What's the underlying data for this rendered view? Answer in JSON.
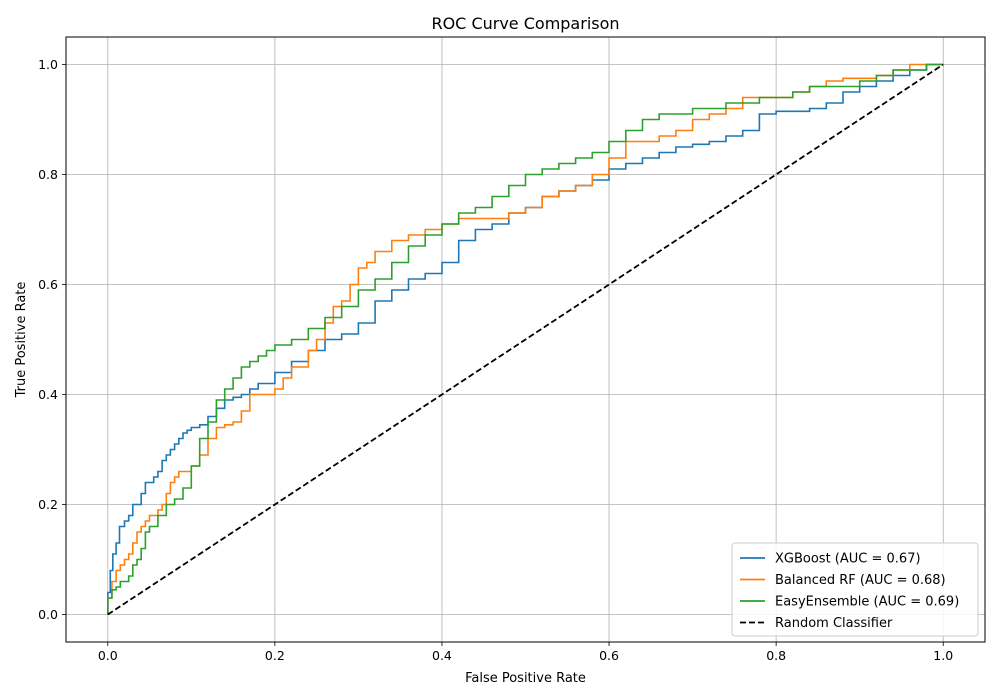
{
  "chart_data": {
    "type": "line",
    "title": "ROC Curve Comparison",
    "xlabel": "False Positive Rate",
    "ylabel": "True Positive Rate",
    "xlim": [
      -0.05,
      1.05
    ],
    "ylim": [
      -0.05,
      1.05
    ],
    "xticks": [
      "0.0",
      "0.2",
      "0.4",
      "0.6",
      "0.8",
      "1.0"
    ],
    "yticks": [
      "0.0",
      "0.2",
      "0.4",
      "0.6",
      "0.8",
      "1.0"
    ],
    "grid": true,
    "legend_position": "bottom-right",
    "series": [
      {
        "name": "XGBoost (AUC = 0.67)",
        "color": "#1f77b4",
        "x": [
          0,
          0.003,
          0.006,
          0.01,
          0.014,
          0.02,
          0.025,
          0.03,
          0.035,
          0.04,
          0.045,
          0.05,
          0.055,
          0.06,
          0.065,
          0.07,
          0.075,
          0.08,
          0.085,
          0.09,
          0.095,
          0.1,
          0.11,
          0.12,
          0.13,
          0.14,
          0.15,
          0.16,
          0.17,
          0.18,
          0.2,
          0.22,
          0.24,
          0.26,
          0.28,
          0.3,
          0.32,
          0.34,
          0.36,
          0.38,
          0.4,
          0.42,
          0.44,
          0.46,
          0.48,
          0.5,
          0.52,
          0.54,
          0.56,
          0.58,
          0.6,
          0.62,
          0.64,
          0.66,
          0.68,
          0.7,
          0.72,
          0.74,
          0.76,
          0.78,
          0.8,
          0.82,
          0.84,
          0.86,
          0.88,
          0.9,
          0.92,
          0.94,
          0.96,
          0.98,
          1.0
        ],
        "y": [
          0,
          0.04,
          0.08,
          0.11,
          0.13,
          0.16,
          0.17,
          0.18,
          0.2,
          0.2,
          0.22,
          0.24,
          0.24,
          0.25,
          0.26,
          0.28,
          0.29,
          0.3,
          0.31,
          0.32,
          0.33,
          0.335,
          0.34,
          0.345,
          0.36,
          0.375,
          0.39,
          0.395,
          0.4,
          0.41,
          0.42,
          0.44,
          0.46,
          0.48,
          0.5,
          0.51,
          0.53,
          0.57,
          0.59,
          0.61,
          0.62,
          0.64,
          0.68,
          0.7,
          0.71,
          0.73,
          0.74,
          0.76,
          0.77,
          0.78,
          0.79,
          0.81,
          0.82,
          0.83,
          0.84,
          0.85,
          0.855,
          0.86,
          0.87,
          0.88,
          0.91,
          0.915,
          0.915,
          0.92,
          0.93,
          0.95,
          0.96,
          0.97,
          0.98,
          0.99,
          1.0
        ]
      },
      {
        "name": "Balanced RF (AUC = 0.68)",
        "color": "#ff7f0e",
        "x": [
          0,
          0.005,
          0.01,
          0.015,
          0.02,
          0.025,
          0.03,
          0.035,
          0.04,
          0.045,
          0.05,
          0.055,
          0.06,
          0.065,
          0.07,
          0.075,
          0.08,
          0.085,
          0.09,
          0.1,
          0.11,
          0.12,
          0.13,
          0.14,
          0.15,
          0.16,
          0.17,
          0.18,
          0.2,
          0.21,
          0.22,
          0.24,
          0.25,
          0.26,
          0.27,
          0.28,
          0.29,
          0.3,
          0.31,
          0.32,
          0.34,
          0.36,
          0.38,
          0.4,
          0.42,
          0.44,
          0.46,
          0.48,
          0.5,
          0.52,
          0.54,
          0.56,
          0.58,
          0.6,
          0.62,
          0.64,
          0.66,
          0.68,
          0.7,
          0.72,
          0.74,
          0.76,
          0.78,
          0.8,
          0.82,
          0.84,
          0.86,
          0.88,
          0.9,
          0.92,
          0.94,
          0.96,
          0.98,
          1.0
        ],
        "y": [
          0,
          0.03,
          0.06,
          0.08,
          0.09,
          0.1,
          0.11,
          0.13,
          0.15,
          0.16,
          0.17,
          0.18,
          0.18,
          0.19,
          0.2,
          0.22,
          0.24,
          0.25,
          0.26,
          0.26,
          0.27,
          0.29,
          0.32,
          0.34,
          0.345,
          0.35,
          0.37,
          0.4,
          0.4,
          0.41,
          0.43,
          0.45,
          0.48,
          0.5,
          0.53,
          0.56,
          0.57,
          0.6,
          0.63,
          0.64,
          0.66,
          0.68,
          0.69,
          0.7,
          0.71,
          0.72,
          0.72,
          0.72,
          0.73,
          0.74,
          0.76,
          0.77,
          0.78,
          0.8,
          0.83,
          0.86,
          0.86,
          0.87,
          0.88,
          0.9,
          0.91,
          0.92,
          0.94,
          0.94,
          0.94,
          0.95,
          0.96,
          0.97,
          0.975,
          0.975,
          0.98,
          0.99,
          1.0,
          1.0
        ]
      },
      {
        "name": "EasyEnsemble (AUC = 0.69)",
        "color": "#2ca02c",
        "x": [
          0,
          0.005,
          0.01,
          0.015,
          0.02,
          0.025,
          0.03,
          0.035,
          0.04,
          0.045,
          0.05,
          0.06,
          0.07,
          0.08,
          0.09,
          0.1,
          0.11,
          0.12,
          0.13,
          0.14,
          0.15,
          0.16,
          0.17,
          0.18,
          0.19,
          0.2,
          0.22,
          0.24,
          0.26,
          0.28,
          0.3,
          0.32,
          0.34,
          0.36,
          0.38,
          0.4,
          0.42,
          0.44,
          0.46,
          0.48,
          0.5,
          0.52,
          0.54,
          0.56,
          0.58,
          0.6,
          0.62,
          0.64,
          0.66,
          0.68,
          0.7,
          0.72,
          0.74,
          0.76,
          0.78,
          0.8,
          0.82,
          0.84,
          0.86,
          0.88,
          0.9,
          0.92,
          0.94,
          0.96,
          0.98,
          1.0
        ],
        "y": [
          0,
          0.03,
          0.045,
          0.05,
          0.06,
          0.06,
          0.07,
          0.09,
          0.1,
          0.12,
          0.15,
          0.16,
          0.18,
          0.2,
          0.21,
          0.23,
          0.27,
          0.32,
          0.35,
          0.39,
          0.41,
          0.43,
          0.45,
          0.46,
          0.47,
          0.48,
          0.49,
          0.5,
          0.52,
          0.54,
          0.56,
          0.59,
          0.61,
          0.64,
          0.67,
          0.69,
          0.71,
          0.73,
          0.74,
          0.76,
          0.78,
          0.8,
          0.81,
          0.82,
          0.83,
          0.84,
          0.86,
          0.88,
          0.9,
          0.91,
          0.91,
          0.92,
          0.92,
          0.93,
          0.93,
          0.94,
          0.94,
          0.95,
          0.96,
          0.96,
          0.96,
          0.97,
          0.98,
          0.99,
          0.99,
          1.0
        ]
      },
      {
        "name": "Random Classifier",
        "color": "#000000",
        "dashed": true,
        "x": [
          0,
          1
        ],
        "y": [
          0,
          1
        ]
      }
    ]
  }
}
